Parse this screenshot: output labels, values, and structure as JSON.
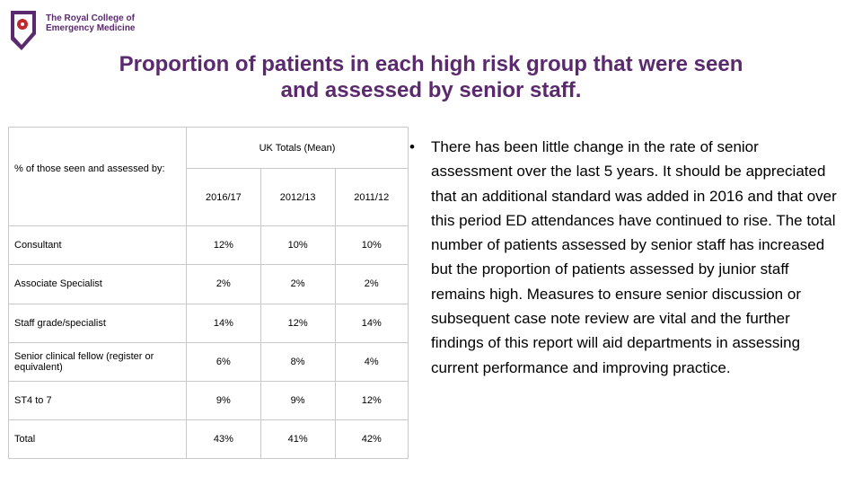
{
  "logo": {
    "line1": "The Royal College of",
    "line2": "Emergency Medicine"
  },
  "title": {
    "line1": "Proportion of patients in each high risk group that were seen",
    "line2": "and assessed by senior staff."
  },
  "table": {
    "group_header": "UK Totals (Mean)",
    "row_header": "% of those seen and assessed by:",
    "columns": [
      "2016/17",
      "2012/13",
      "2011/12"
    ],
    "rows": [
      {
        "label": "Consultant",
        "values": [
          "12%",
          "10%",
          "10%"
        ]
      },
      {
        "label": "Associate Specialist",
        "values": [
          "2%",
          "2%",
          "2%"
        ]
      },
      {
        "label": "Staff grade/specialist",
        "values": [
          "14%",
          "12%",
          "14%"
        ]
      },
      {
        "label": "Senior clinical fellow (register or equivalent)",
        "values": [
          "6%",
          "8%",
          "4%"
        ]
      },
      {
        "label": "ST4 to 7",
        "values": [
          "9%",
          "9%",
          "12%"
        ]
      },
      {
        "label": "Total",
        "values": [
          "43%",
          "41%",
          "42%"
        ]
      }
    ]
  },
  "bullets": [
    "There has been little change in the rate of senior assessment over the last 5 years. It should be appreciated that an additional standard was added in 2016 and that over this period ED attendances have continued to rise. The total number of patients assessed by senior staff has increased but the proportion of patients assessed by junior staff remains high. Measures to ensure senior discussion or subsequent case note review are vital and the further findings of this report will aid departments in assessing current performance and improving practice."
  ],
  "colors": {
    "brand": "#5b2a6e",
    "crest": "#c0282d",
    "border": "#c9c9c9"
  }
}
